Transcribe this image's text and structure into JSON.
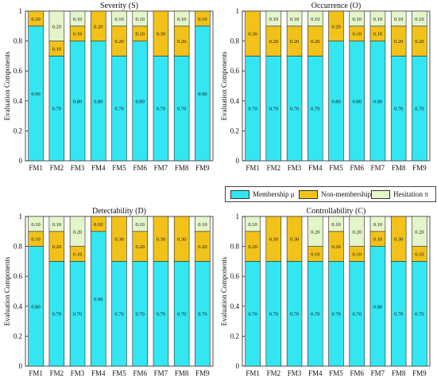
{
  "colors": {
    "membership": "#33E6F2",
    "nonmembership": "#F2C21A",
    "hesitation": "#E3F5C9",
    "edge": "#2a2a2a"
  },
  "legend": {
    "membership": "Membership μ",
    "nonmembership": "Non-membership ν",
    "hesitation": "Hesitation π"
  },
  "chart_data": [
    {
      "type": "bar",
      "stacked": true,
      "title": "Severity (S)",
      "ylabel": "Evaluation Components",
      "ylim": [
        0,
        1
      ],
      "yticks": [
        "0",
        "0.2",
        "0.4",
        "0.6",
        "0.8",
        "1"
      ],
      "categories": [
        "FM1",
        "FM2",
        "FM3",
        "FM4",
        "FM5",
        "FM6",
        "FM7",
        "FM8",
        "FM9"
      ],
      "series": [
        {
          "name": "Membership μ",
          "values": [
            0.9,
            0.7,
            0.8,
            0.8,
            0.7,
            0.8,
            0.7,
            0.7,
            0.9
          ]
        },
        {
          "name": "Non-membership ν",
          "values": [
            0.1,
            0.1,
            0.1,
            0.2,
            0.2,
            0.1,
            0.3,
            0.2,
            0.1
          ]
        },
        {
          "name": "Hesitation π",
          "values": [
            0,
            0.2,
            0.1,
            0,
            0.1,
            0.1,
            0,
            0.1,
            0
          ]
        }
      ],
      "labels": [
        {
          "m": "0.90",
          "n": "0.10",
          "h": ""
        },
        {
          "m": "0.70",
          "n": "0.10",
          "h": "0.20"
        },
        {
          "m": "0.80",
          "n": "0.10",
          "h": "0.10"
        },
        {
          "m": "0.80",
          "n": "0.20",
          "h": ""
        },
        {
          "m": "0.70",
          "n": "0.20",
          "h": "0.10"
        },
        {
          "m": "0.80",
          "n": "0.10",
          "h": "0.10"
        },
        {
          "m": "0.70",
          "n": "0.30",
          "h": ""
        },
        {
          "m": "0.70",
          "n": "0.20",
          "h": "0.10"
        },
        {
          "m": "0.90",
          "n": "0.10",
          "h": ""
        }
      ]
    },
    {
      "type": "bar",
      "stacked": true,
      "title": "Occurrence (O)",
      "ylabel": "Evaluation Components",
      "ylim": [
        0,
        1
      ],
      "yticks": [
        "0",
        "0.2",
        "0.4",
        "0.6",
        "0.8",
        "1"
      ],
      "categories": [
        "FM1",
        "FM2",
        "FM3",
        "FM4",
        "FM5",
        "FM6",
        "FM7",
        "FM8",
        "FM9"
      ],
      "series": [
        {
          "name": "Membership μ",
          "values": [
            0.7,
            0.7,
            0.7,
            0.7,
            0.8,
            0.8,
            0.8,
            0.7,
            0.7
          ]
        },
        {
          "name": "Non-membership ν",
          "values": [
            0.3,
            0.2,
            0.2,
            0.2,
            0.2,
            0.1,
            0.1,
            0.2,
            0.2
          ]
        },
        {
          "name": "Hesitation π",
          "values": [
            0,
            0.1,
            0.1,
            0.1,
            0,
            0.1,
            0.1,
            0.1,
            0.1
          ]
        }
      ],
      "labels": [
        {
          "m": "0.70",
          "n": "0.30",
          "h": ""
        },
        {
          "m": "0.70",
          "n": "0.20",
          "h": "0.10"
        },
        {
          "m": "0.70",
          "n": "0.20",
          "h": "0.10"
        },
        {
          "m": "0.70",
          "n": "0.20",
          "h": "0.10"
        },
        {
          "m": "0.80",
          "n": "0.20",
          "h": ""
        },
        {
          "m": "0.80",
          "n": "0.10",
          "h": "0.10"
        },
        {
          "m": "0.80",
          "n": "0.10",
          "h": "0.10"
        },
        {
          "m": "0.70",
          "n": "0.20",
          "h": "0.10"
        },
        {
          "m": "0.70",
          "n": "0.20",
          "h": "0.10"
        }
      ]
    },
    {
      "type": "bar",
      "stacked": true,
      "title": "Detectability (D)",
      "ylabel": "Evaluation Components",
      "ylim": [
        0,
        1
      ],
      "yticks": [
        "0",
        "0.2",
        "0.4",
        "0.6",
        "0.8",
        "1"
      ],
      "categories": [
        "FM1",
        "FM2",
        "FM3",
        "FM4",
        "FM5",
        "FM6",
        "FM7",
        "FM8",
        "FM9"
      ],
      "series": [
        {
          "name": "Membership μ",
          "values": [
            0.8,
            0.7,
            0.7,
            0.9,
            0.7,
            0.7,
            0.7,
            0.7,
            0.7
          ]
        },
        {
          "name": "Non-membership ν",
          "values": [
            0.1,
            0.2,
            0.1,
            0.1,
            0.3,
            0.2,
            0.3,
            0.3,
            0.2
          ]
        },
        {
          "name": "Hesitation π",
          "values": [
            0.1,
            0.1,
            0.2,
            0,
            0,
            0.1,
            0,
            0,
            0.1
          ]
        }
      ],
      "labels": [
        {
          "m": "0.80",
          "n": "0.10",
          "h": "0.10"
        },
        {
          "m": "0.70",
          "n": "0.20",
          "h": "0.10"
        },
        {
          "m": "0.70",
          "n": "0.10",
          "h": "0.20"
        },
        {
          "m": "0.90",
          "n": "0.10",
          "h": ""
        },
        {
          "m": "0.70",
          "n": "0.30",
          "h": ""
        },
        {
          "m": "0.70",
          "n": "0.20",
          "h": "0.10"
        },
        {
          "m": "0.70",
          "n": "0.30",
          "h": ""
        },
        {
          "m": "0.70",
          "n": "0.30",
          "h": ""
        },
        {
          "m": "0.70",
          "n": "0.20",
          "h": "0.10"
        }
      ]
    },
    {
      "type": "bar",
      "stacked": true,
      "title": "Controllability (C)",
      "ylabel": "Evaluation Components",
      "ylim": [
        0,
        1
      ],
      "yticks": [
        "0",
        "0.2",
        "0.4",
        "0.6",
        "0.8",
        "1"
      ],
      "categories": [
        "FM1",
        "FM2",
        "FM3",
        "FM4",
        "FM5",
        "FM6",
        "FM7",
        "FM8",
        "FM9"
      ],
      "series": [
        {
          "name": "Membership μ",
          "values": [
            0.7,
            0.7,
            0.7,
            0.7,
            0.7,
            0.7,
            0.8,
            0.7,
            0.7
          ]
        },
        {
          "name": "Non-membership ν",
          "values": [
            0.2,
            0.3,
            0.3,
            0.1,
            0.2,
            0.1,
            0.1,
            0.3,
            0.1
          ]
        },
        {
          "name": "Hesitation π",
          "values": [
            0.1,
            0,
            0,
            0.2,
            0.1,
            0.2,
            0.1,
            0,
            0.2
          ]
        }
      ],
      "labels": [
        {
          "m": "0.70",
          "n": "0.20",
          "h": "0.10"
        },
        {
          "m": "0.70",
          "n": "0.30",
          "h": ""
        },
        {
          "m": "0.70",
          "n": "0.30",
          "h": ""
        },
        {
          "m": "0.70",
          "n": "0.10",
          "h": "0.20"
        },
        {
          "m": "0.70",
          "n": "0.20",
          "h": "0.10"
        },
        {
          "m": "0.70",
          "n": "0.10",
          "h": "0.20"
        },
        {
          "m": "0.80",
          "n": "0.10",
          "h": "0.10"
        },
        {
          "m": "0.70",
          "n": "0.30",
          "h": ""
        },
        {
          "m": "0.70",
          "n": "0.10",
          "h": "0.20"
        }
      ]
    }
  ]
}
